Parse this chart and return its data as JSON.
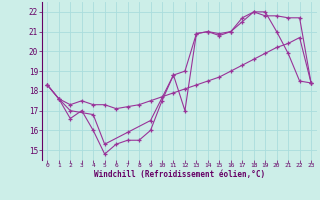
{
  "bg_color": "#cceee8",
  "grid_color": "#aadddd",
  "line_color": "#993399",
  "xlabel": "Windchill (Refroidissement éolien,°C)",
  "xlim": [
    -0.5,
    23.5
  ],
  "ylim": [
    14.5,
    22.5
  ],
  "yticks": [
    15,
    16,
    17,
    18,
    19,
    20,
    21,
    22
  ],
  "xticks": [
    0,
    1,
    2,
    3,
    4,
    5,
    6,
    7,
    8,
    9,
    10,
    11,
    12,
    13,
    14,
    15,
    16,
    17,
    18,
    19,
    20,
    21,
    22,
    23
  ],
  "series1_x": [
    0,
    1,
    2,
    3,
    4,
    5,
    6,
    7,
    8,
    9,
    10,
    11,
    12,
    13,
    14,
    15,
    16,
    17,
    18,
    19,
    20,
    21,
    22,
    23
  ],
  "series1_y": [
    18.3,
    17.6,
    16.6,
    17.0,
    16.0,
    14.8,
    15.3,
    15.5,
    15.5,
    16.0,
    17.5,
    18.8,
    17.0,
    20.9,
    21.0,
    20.9,
    21.0,
    21.7,
    22.0,
    22.0,
    21.0,
    19.9,
    18.5,
    18.4
  ],
  "series2_x": [
    0,
    1,
    2,
    4,
    5,
    7,
    9,
    11,
    12,
    13,
    14,
    15,
    16,
    17,
    18,
    19,
    20,
    21,
    22,
    23
  ],
  "series2_y": [
    18.3,
    17.6,
    17.0,
    16.8,
    15.3,
    15.9,
    16.5,
    18.8,
    19.0,
    20.9,
    21.0,
    20.8,
    21.0,
    21.5,
    22.0,
    21.8,
    21.8,
    21.7,
    21.7,
    18.4
  ],
  "series3_x": [
    0,
    1,
    2,
    3,
    4,
    5,
    6,
    7,
    8,
    9,
    10,
    11,
    12,
    13,
    14,
    15,
    16,
    17,
    18,
    19,
    20,
    21,
    22,
    23
  ],
  "series3_y": [
    18.3,
    17.6,
    17.3,
    17.5,
    17.3,
    17.3,
    17.1,
    17.2,
    17.3,
    17.5,
    17.7,
    17.9,
    18.1,
    18.3,
    18.5,
    18.7,
    19.0,
    19.3,
    19.6,
    19.9,
    20.2,
    20.4,
    20.7,
    18.4
  ]
}
